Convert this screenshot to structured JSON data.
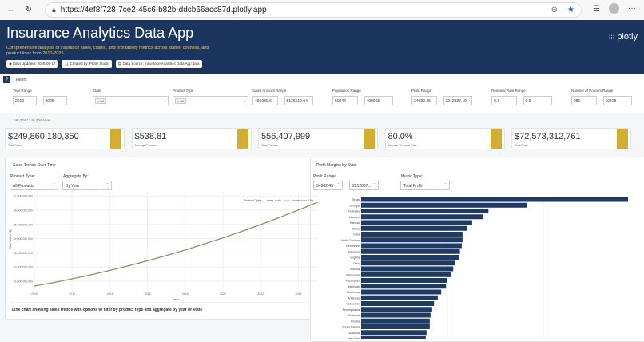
{
  "browser": {
    "url": "https://4ef8f728-7ce2-45c6-b82b-ddcb66acc87d.plotly.app"
  },
  "header": {
    "title": "Insurance Analytics Data App",
    "description": "Comprehensive analysis of insurance sales, claims, and profitability metrics across states, counties, and product lines from 2010-2025.",
    "badges": [
      "Data Updated: 2025-09-17",
      "Created by: Plotly Studio",
      "Data Source: Insurance Analytics Data App data"
    ],
    "logo": "plotly"
  },
  "filters": {
    "title": "Filters",
    "groups": [
      {
        "label": "Year Range",
        "min": "2010",
        "max": "2025"
      },
      {
        "label": "State",
        "value": "All"
      },
      {
        "label": "Product Type",
        "value": "All"
      },
      {
        "label": "Sales Amount Range",
        "min": "495030.6",
        "max": "5136512.04"
      },
      {
        "label": "Population Range",
        "min": "50044",
        "max": "499965"
      },
      {
        "label": "Profit Range",
        "min": "34982.45",
        "max": "2212837.19"
      },
      {
        "label": "Renewal Rate Range",
        "min": "0.7",
        "max": "0.9"
      },
      {
        "label": "Number of Policies Range",
        "min": "981",
        "max": "10425"
      }
    ]
  },
  "row_count": "146,304 / 146,304 rows",
  "kpis": [
    {
      "value": "$249,860,180,350",
      "label": "Total Sales"
    },
    {
      "value": "$538.81",
      "label": "Average Premium"
    },
    {
      "value": "556,407,999",
      "label": "Total Policies"
    },
    {
      "value": "80.0%",
      "label": "Average Renewal Rate"
    },
    {
      "value": "$72,573,312,761",
      "label": "Total Profit"
    }
  ],
  "colors": {
    "header": "#1c355e",
    "accent": "#d4ae2f",
    "bar": "#1f3a63"
  },
  "sales_panel": {
    "title": "Sales Trends Over Time",
    "product_label": "Product Type:",
    "product_value": "All Products",
    "agg_label": "Aggregate By:",
    "agg_value": "By Year",
    "caption": "Line chart showing sales trends with options to filter by product type and aggregate by year or state"
  },
  "profit_panel": {
    "title": "Profit Margins by State",
    "range_label": "Profit Range:",
    "range_min": "34982.45",
    "range_max": "2212837...",
    "metric_label": "Metric Type:",
    "metric_value": "Total Profit"
  },
  "chart_data": [
    {
      "type": "line",
      "xlabel": "Year",
      "ylabel": "Total Sales ($)",
      "legend_title": "Product Type",
      "legend": "top-right",
      "xlim": [
        2010,
        2025
      ],
      "ylim": [
        600000000,
        7000000000
      ],
      "x_ticks": [
        "2010",
        "2012",
        "2014",
        "2016",
        "2018",
        "2020",
        "2022",
        "2024"
      ],
      "y_ticks": [
        "$1,000,000,000",
        "$2,000,000,000",
        "$3,000,000,000",
        "$4,000,000,000",
        "$5,000,000,000",
        "$6,000,000,000",
        "$7,000,000,000"
      ],
      "x": [
        2010,
        2011,
        2012,
        2013,
        2014,
        2015,
        2016,
        2017,
        2018,
        2019,
        2020,
        2021,
        2022,
        2023,
        2024,
        2025
      ],
      "series": [
        {
          "name": "Auto",
          "color": "#4a5a6a",
          "values": [
            660000000,
            900000000,
            1170000000,
            1450000000,
            1760000000,
            2090000000,
            2440000000,
            2810000000,
            3200000000,
            3620000000,
            4050000000,
            4510000000,
            4990000000,
            5490000000,
            6010000000,
            6550000000
          ]
        },
        {
          "name": "Home",
          "color": "#e0b43a",
          "values": [
            660000000,
            900000000,
            1170000000,
            1450000000,
            1760000000,
            2090000000,
            2440000000,
            2810000000,
            3200000000,
            3620000000,
            4050000000,
            4510000000,
            4990000000,
            5490000000,
            6010000000,
            6550000000
          ]
        },
        {
          "name": "Life",
          "color": "#7a9e6a",
          "values": [
            660000000,
            900000000,
            1170000000,
            1450000000,
            1760000000,
            2090000000,
            2440000000,
            2810000000,
            3200000000,
            3620000000,
            4050000000,
            4510000000,
            4990000000,
            5490000000,
            6010000000,
            6550000000
          ]
        }
      ]
    },
    {
      "type": "bar",
      "orientation": "horizontal",
      "value_unit": "relative to Texas (1.0)",
      "categories": [
        "Texas",
        "Georgia",
        "Kentucky",
        "Missouri",
        "Kansas",
        "Illinois",
        "Iowa",
        "North Carolina",
        "Tennessee",
        "Nebraska",
        "Virginia",
        "Ohio",
        "Indiana",
        "Minnesota",
        "Mississippi",
        "Michigan",
        "Oklahoma",
        "Arkansas",
        "Wisconsin",
        "Pennsylvania",
        "Alabama",
        "Florida",
        "South Dakota",
        "Louisiana",
        "New York"
      ],
      "values": [
        1.0,
        0.62,
        0.477,
        0.455,
        0.416,
        0.398,
        0.38,
        0.38,
        0.377,
        0.37,
        0.366,
        0.352,
        0.345,
        0.338,
        0.323,
        0.318,
        0.3,
        0.287,
        0.273,
        0.266,
        0.26,
        0.257,
        0.257,
        0.245,
        0.242
      ]
    }
  ]
}
